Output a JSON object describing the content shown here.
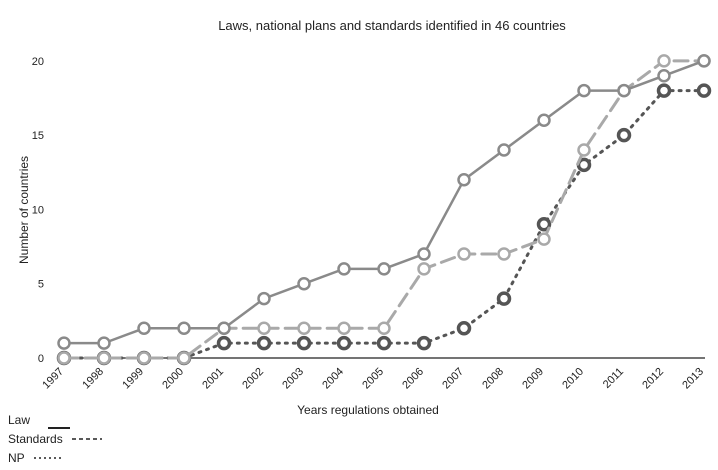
{
  "chart_data": {
    "type": "line",
    "title": "Laws, national plans and standards identified in 46 countries",
    "xlabel": "Years regulations obtained",
    "ylabel": "Number of countries",
    "x": [
      "1997",
      "1998",
      "1999",
      "2000",
      "2001",
      "2002",
      "2003",
      "2004",
      "2005",
      "2006",
      "2007",
      "2008",
      "2009",
      "2010",
      "2011",
      "2012",
      "2013"
    ],
    "ylim": [
      0,
      21
    ],
    "yticks": [
      0,
      5,
      10,
      15,
      20
    ],
    "grid": false,
    "legend_position": "bottom-left",
    "series": [
      {
        "name": "Law",
        "style": "solid",
        "color": "#8a8a8a",
        "values": [
          1,
          1,
          2,
          2,
          2,
          4,
          5,
          6,
          6,
          7,
          12,
          14,
          16,
          18,
          18,
          19,
          20
        ]
      },
      {
        "name": "Standards",
        "style": "dashed",
        "color": "#a9a9a9",
        "values": [
          0,
          0,
          0,
          0,
          2,
          2,
          2,
          2,
          2,
          6,
          7,
          7,
          8,
          14,
          18,
          20,
          20
        ]
      },
      {
        "name": "NP",
        "style": "dotted",
        "color": "#555555",
        "values": [
          0,
          0,
          0,
          0,
          1,
          1,
          1,
          1,
          1,
          1,
          2,
          4,
          9,
          13,
          15,
          18,
          18
        ]
      }
    ]
  }
}
